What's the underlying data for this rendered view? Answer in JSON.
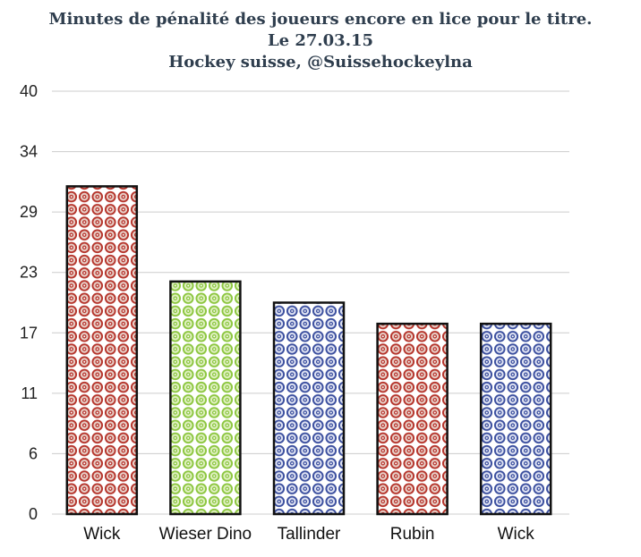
{
  "title_lines": [
    "Minutes de pénalité des joueurs encore en lice pour le titre.",
    "Le 27.03.15",
    "Hockey suisse, @Suissehockeylna"
  ],
  "chart_data": {
    "type": "bar",
    "title": "Minutes de pénalité des joueurs encore en lice pour le titre.",
    "subtitle": "Le 27.03.15 — Hockey suisse, @Suissehockeylna",
    "categories": [
      "Wick",
      "Wieser Dino",
      "Tallinder",
      "Rubin",
      "Wick"
    ],
    "values": [
      31,
      22,
      20,
      18,
      18
    ],
    "ylim": [
      0,
      40
    ],
    "y_ticks": [
      "0",
      "6",
      "11",
      "17",
      "23",
      "29",
      "34",
      "40"
    ],
    "grid": true,
    "xlabel": "",
    "ylabel": "",
    "bar_patterns": [
      "red",
      "green",
      "blue",
      "red",
      "blue"
    ],
    "colors": {
      "red": "#b5342b",
      "red_light": "#e8d0c8",
      "green": "#8cc63f",
      "green_light": "#dff0c0",
      "blue": "#3a4e9e",
      "blue_light": "#dfe3f3",
      "grid": "#cccccc",
      "bar_border": "#111111"
    }
  }
}
